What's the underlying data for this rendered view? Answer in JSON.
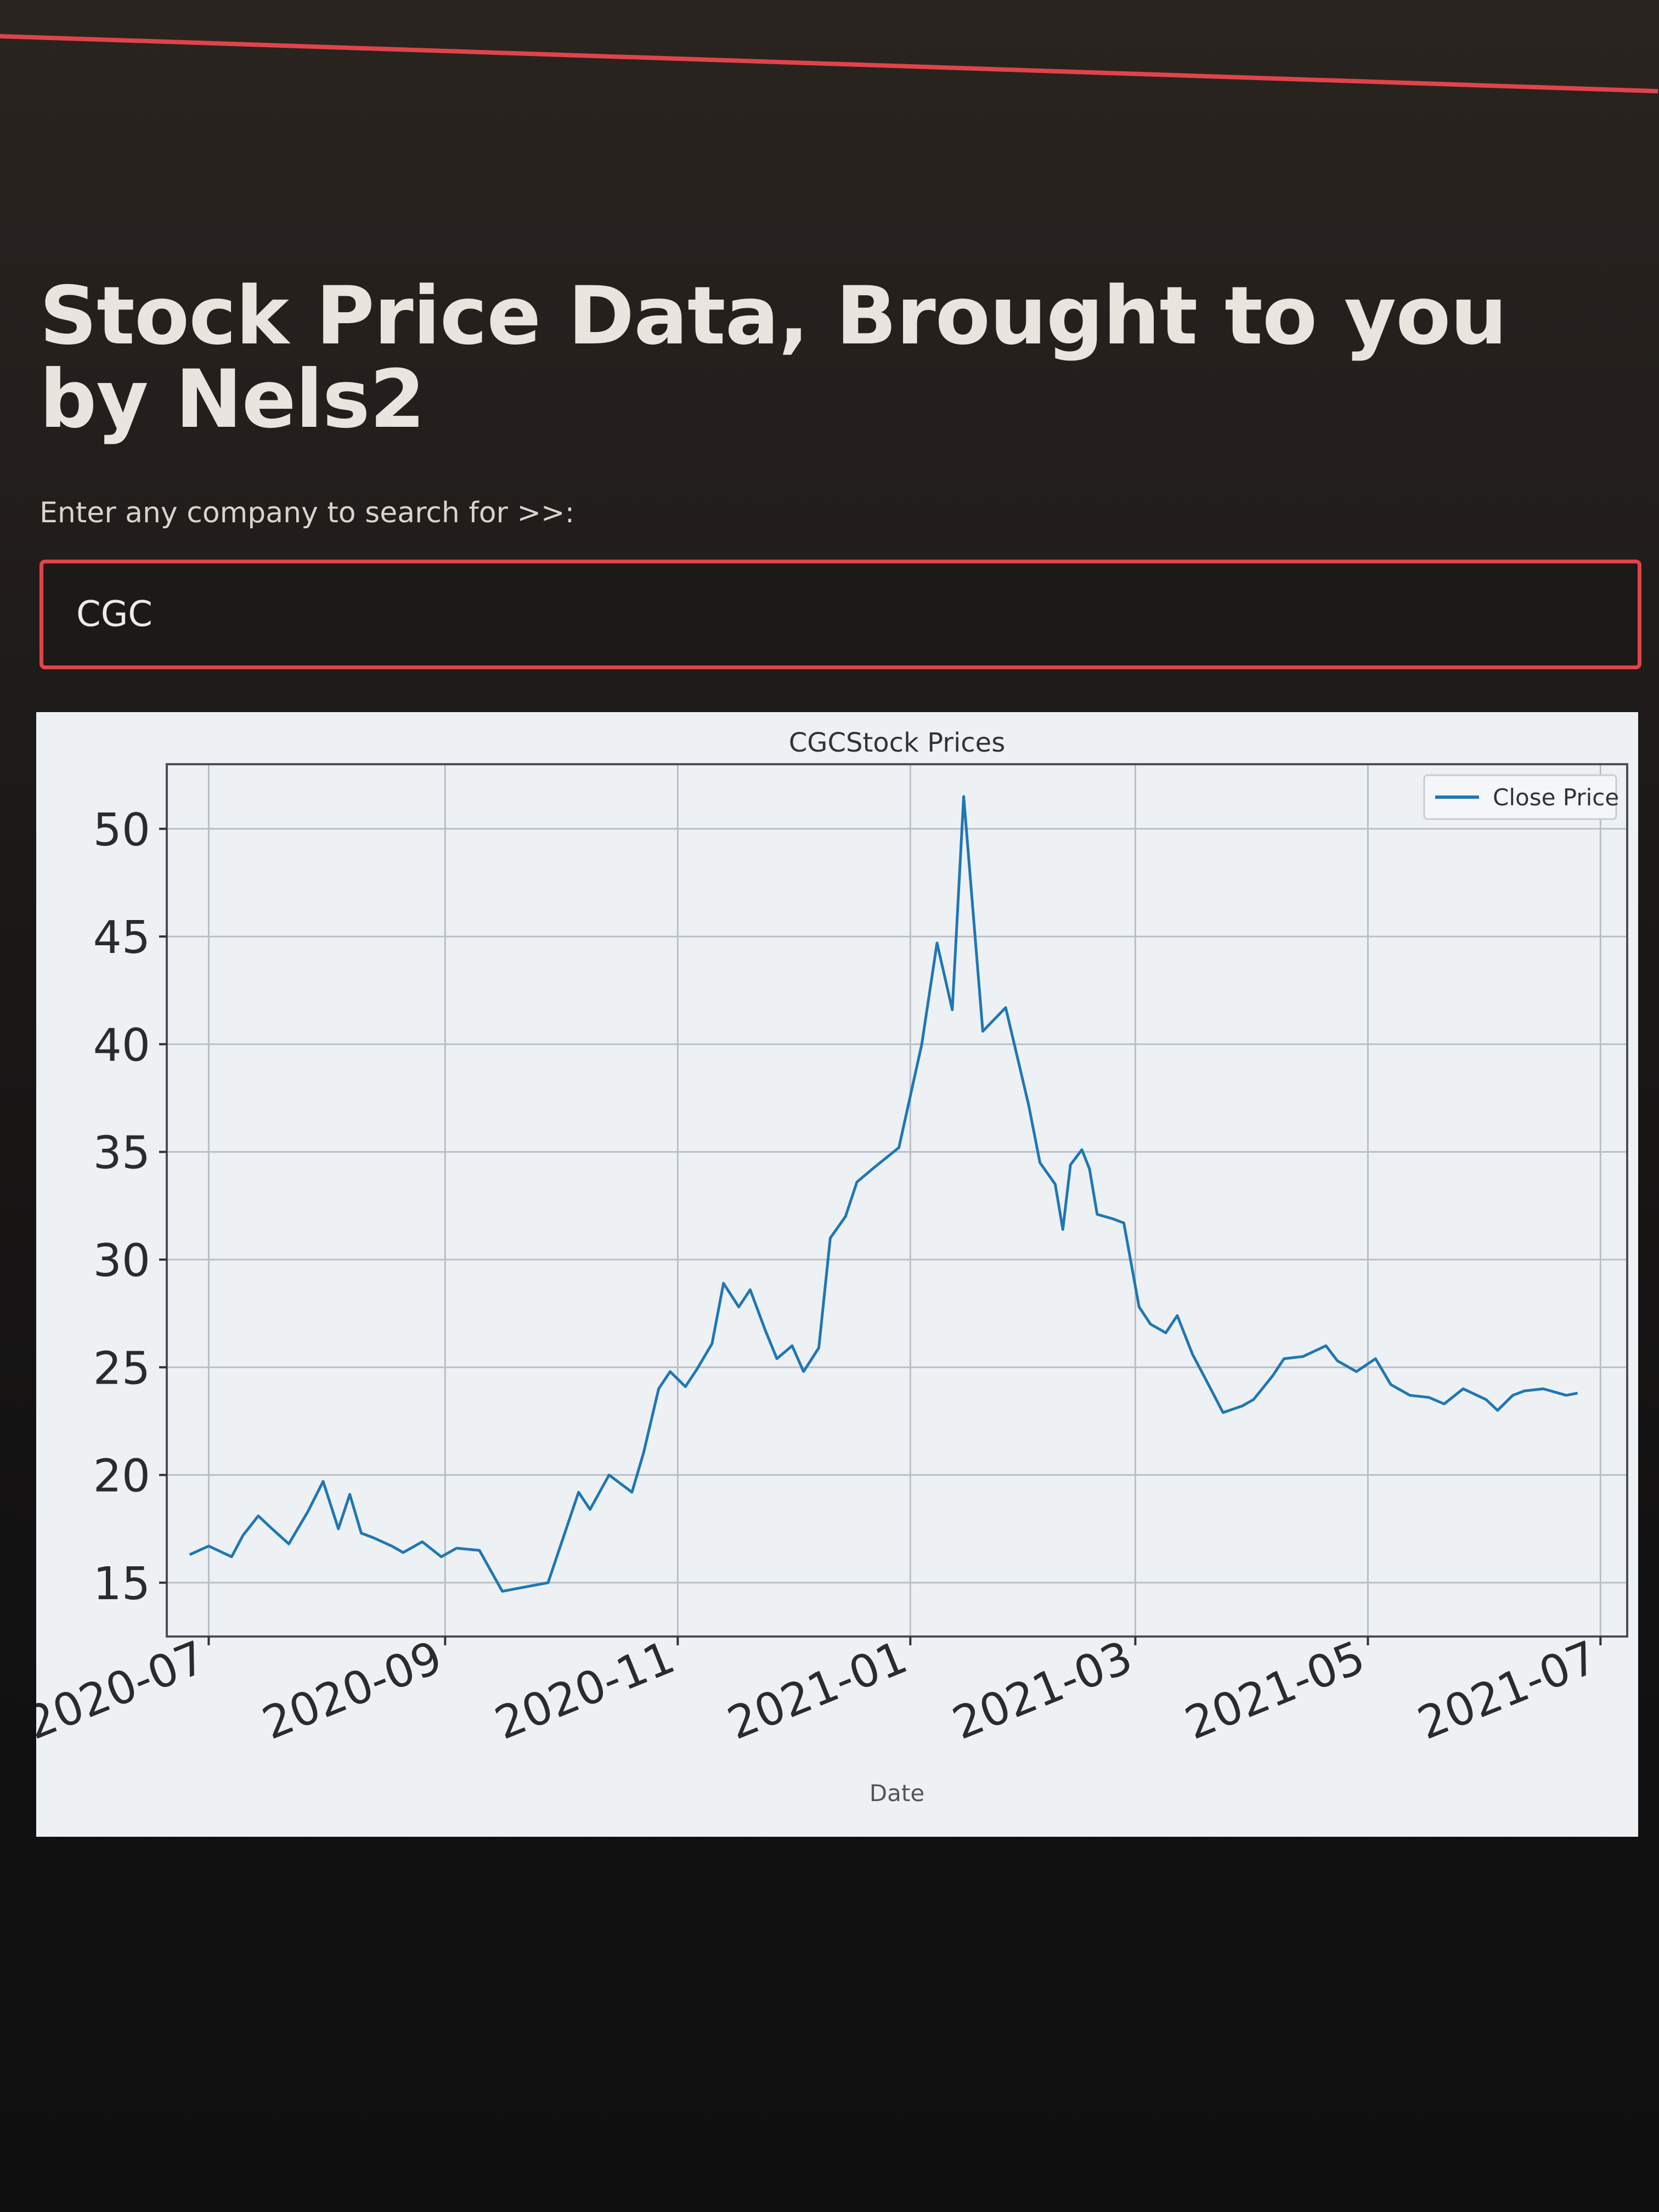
{
  "page": {
    "title": "Stock Price Data, Brought to you by Nels2",
    "search_prompt": "Enter any company to search for >>:",
    "search_value": "CGC"
  },
  "colors": {
    "accent": "#e0444a",
    "line": "#1f77b4",
    "panel": "#eef1f4"
  },
  "chart_data": {
    "type": "line",
    "title": "CGCStock Prices",
    "xlabel": "Date",
    "ylabel": "",
    "legend": "top-right",
    "grid": true,
    "xlim": [
      "2020-06-20",
      "2021-07-08"
    ],
    "ylim": [
      12.5,
      53
    ],
    "xticks": [
      "2020-07",
      "2020-09",
      "2020-11",
      "2021-01",
      "2021-03",
      "2021-05",
      "2021-07"
    ],
    "yticks": [
      15,
      20,
      25,
      30,
      35,
      40,
      45,
      50
    ],
    "series": [
      {
        "name": "Close Price",
        "x": [
          "2020-06-26",
          "2020-07-01",
          "2020-07-07",
          "2020-07-10",
          "2020-07-14",
          "2020-07-17",
          "2020-07-22",
          "2020-07-27",
          "2020-07-31",
          "2020-08-04",
          "2020-08-07",
          "2020-08-10",
          "2020-08-13",
          "2020-08-18",
          "2020-08-21",
          "2020-08-26",
          "2020-08-31",
          "2020-09-04",
          "2020-09-10",
          "2020-09-16",
          "2020-09-22",
          "2020-09-28",
          "2020-10-02",
          "2020-10-06",
          "2020-10-09",
          "2020-10-14",
          "2020-10-20",
          "2020-10-23",
          "2020-10-27",
          "2020-10-30",
          "2020-11-03",
          "2020-11-06",
          "2020-11-10",
          "2020-11-13",
          "2020-11-17",
          "2020-11-20",
          "2020-11-24",
          "2020-11-27",
          "2020-12-01",
          "2020-12-04",
          "2020-12-08",
          "2020-12-11",
          "2020-12-15",
          "2020-12-18",
          "2020-12-22",
          "2020-12-29",
          "2021-01-04",
          "2021-01-08",
          "2021-01-12",
          "2021-01-15",
          "2021-01-20",
          "2021-01-26",
          "2021-02-01",
          "2021-02-04",
          "2021-02-08",
          "2021-02-10",
          "2021-02-12",
          "2021-02-15",
          "2021-02-17",
          "2021-02-19",
          "2021-02-23",
          "2021-02-26",
          "2021-03-02",
          "2021-03-05",
          "2021-03-09",
          "2021-03-12",
          "2021-03-16",
          "2021-03-19",
          "2021-03-24",
          "2021-03-29",
          "2021-04-01",
          "2021-04-06",
          "2021-04-09",
          "2021-04-14",
          "2021-04-20",
          "2021-04-23",
          "2021-04-28",
          "2021-05-03",
          "2021-05-07",
          "2021-05-12",
          "2021-05-17",
          "2021-05-21",
          "2021-05-26",
          "2021-06-01",
          "2021-06-04",
          "2021-06-08",
          "2021-06-11",
          "2021-06-16",
          "2021-06-22",
          "2021-06-25"
        ],
        "values": [
          16.3,
          16.7,
          16.2,
          17.2,
          18.1,
          17.6,
          16.8,
          18.3,
          19.7,
          17.5,
          19.1,
          17.3,
          17.1,
          16.7,
          16.4,
          16.9,
          16.2,
          16.6,
          16.5,
          14.6,
          14.8,
          15.0,
          17.1,
          19.2,
          18.4,
          20.0,
          19.2,
          21.0,
          24.0,
          24.8,
          24.1,
          24.9,
          26.1,
          28.9,
          27.8,
          28.6,
          26.7,
          25.4,
          26.0,
          24.8,
          25.9,
          31.0,
          32.0,
          33.6,
          34.2,
          35.2,
          40.0,
          44.7,
          41.6,
          51.5,
          40.6,
          41.7,
          37.2,
          34.5,
          33.5,
          31.4,
          34.4,
          35.1,
          34.2,
          32.1,
          31.9,
          31.7,
          27.8,
          27.0,
          26.6,
          27.4,
          25.6,
          24.6,
          22.9,
          23.2,
          23.5,
          24.6,
          25.4,
          25.5,
          26.0,
          25.3,
          24.8,
          25.4,
          24.2,
          23.7,
          23.6,
          23.3,
          24.0,
          23.5,
          23.0,
          23.7,
          23.9,
          24.0,
          23.7,
          23.8
        ]
      }
    ]
  }
}
